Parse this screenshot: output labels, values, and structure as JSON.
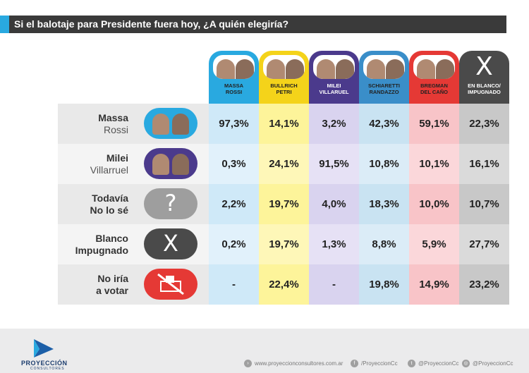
{
  "title": "Si el balotaje para Presidente fuera hoy, ¿A quién elegiría?",
  "chart_data": {
    "type": "table",
    "title": "Si el balotaje para Presidente fuera hoy, ¿A quién elegiría?",
    "columns": [
      {
        "line1": "MASSA",
        "line2": "ROSSI",
        "color": "#29a9e0",
        "x_glyph": ""
      },
      {
        "line1": "BULLRICH",
        "line2": "PETRI",
        "color": "#f4d31a",
        "x_glyph": ""
      },
      {
        "line1": "MILEI",
        "line2": "VILLARUEL",
        "color": "#4b3a8c",
        "x_glyph": ""
      },
      {
        "line1": "SCHIARETTI",
        "line2": "RANDAZZO",
        "color": "#3a8ec9",
        "x_glyph": ""
      },
      {
        "line1": "BREGMAN",
        "line2": "DEL CAÑO",
        "color": "#e53935",
        "x_glyph": ""
      },
      {
        "line1": "EN BLANCO/",
        "line2": "IMPUGNADO",
        "color": "#4a4a4a",
        "x_glyph": "X"
      }
    ],
    "column_fill": [
      "#cfe9f8",
      "#fdf49a",
      "#d9d3ef",
      "#c9e3f2",
      "#f8c4c8",
      "#c8c8c8"
    ],
    "column_fill_alt": [
      "#e1f1fb",
      "#fef7b8",
      "#e6e1f5",
      "#dbecf7",
      "#fbd7da",
      "#dadada"
    ],
    "rows": [
      {
        "line1": "Massa",
        "line2": "Rossi",
        "bold_both": false,
        "icon": "massa-rossi-photo",
        "icon_color": "#29a9e0",
        "glyph": "",
        "values": [
          "97,3%",
          "14,1%",
          "3,2%",
          "42,3%",
          "59,1%",
          "22,3%"
        ]
      },
      {
        "line1": "Milei",
        "line2": "Villarruel",
        "bold_both": false,
        "icon": "milei-villarruel-photo",
        "icon_color": "#4b3a8c",
        "glyph": "",
        "values": [
          "0,3%",
          "24,1%",
          "91,5%",
          "10,8%",
          "10,1%",
          "16,1%"
        ]
      },
      {
        "line1": "Todavía",
        "line2": "No lo sé",
        "bold_both": true,
        "icon": "question-icon",
        "icon_color": "#9e9e9e",
        "glyph": "?",
        "values": [
          "2,2%",
          "19,7%",
          "4,0%",
          "18,3%",
          "10,0%",
          "10,7%"
        ]
      },
      {
        "line1": "Blanco",
        "line2": "Impugnado",
        "bold_both": true,
        "icon": "x-icon",
        "icon_color": "#4a4a4a",
        "glyph": "X",
        "values": [
          "0,2%",
          "19,7%",
          "1,3%",
          "8,8%",
          "5,9%",
          "27,7%"
        ]
      },
      {
        "line1": "No iría",
        "line2": "a votar",
        "bold_both": true,
        "icon": "no-vote-icon",
        "icon_color": "#e53935",
        "glyph": "",
        "values": [
          "-",
          "22,4%",
          "-",
          "19,8%",
          "14,9%",
          "23,2%"
        ]
      }
    ]
  },
  "footer": {
    "brand": "PROYECCIÓN",
    "brand_sub": "CONSULTORES",
    "web": "www.proyeccionconsultores.com.ar",
    "facebook": "/ProyeccionCc",
    "twitter": "@ProyeccionCc",
    "instagram": "@ProyeccionCc"
  }
}
